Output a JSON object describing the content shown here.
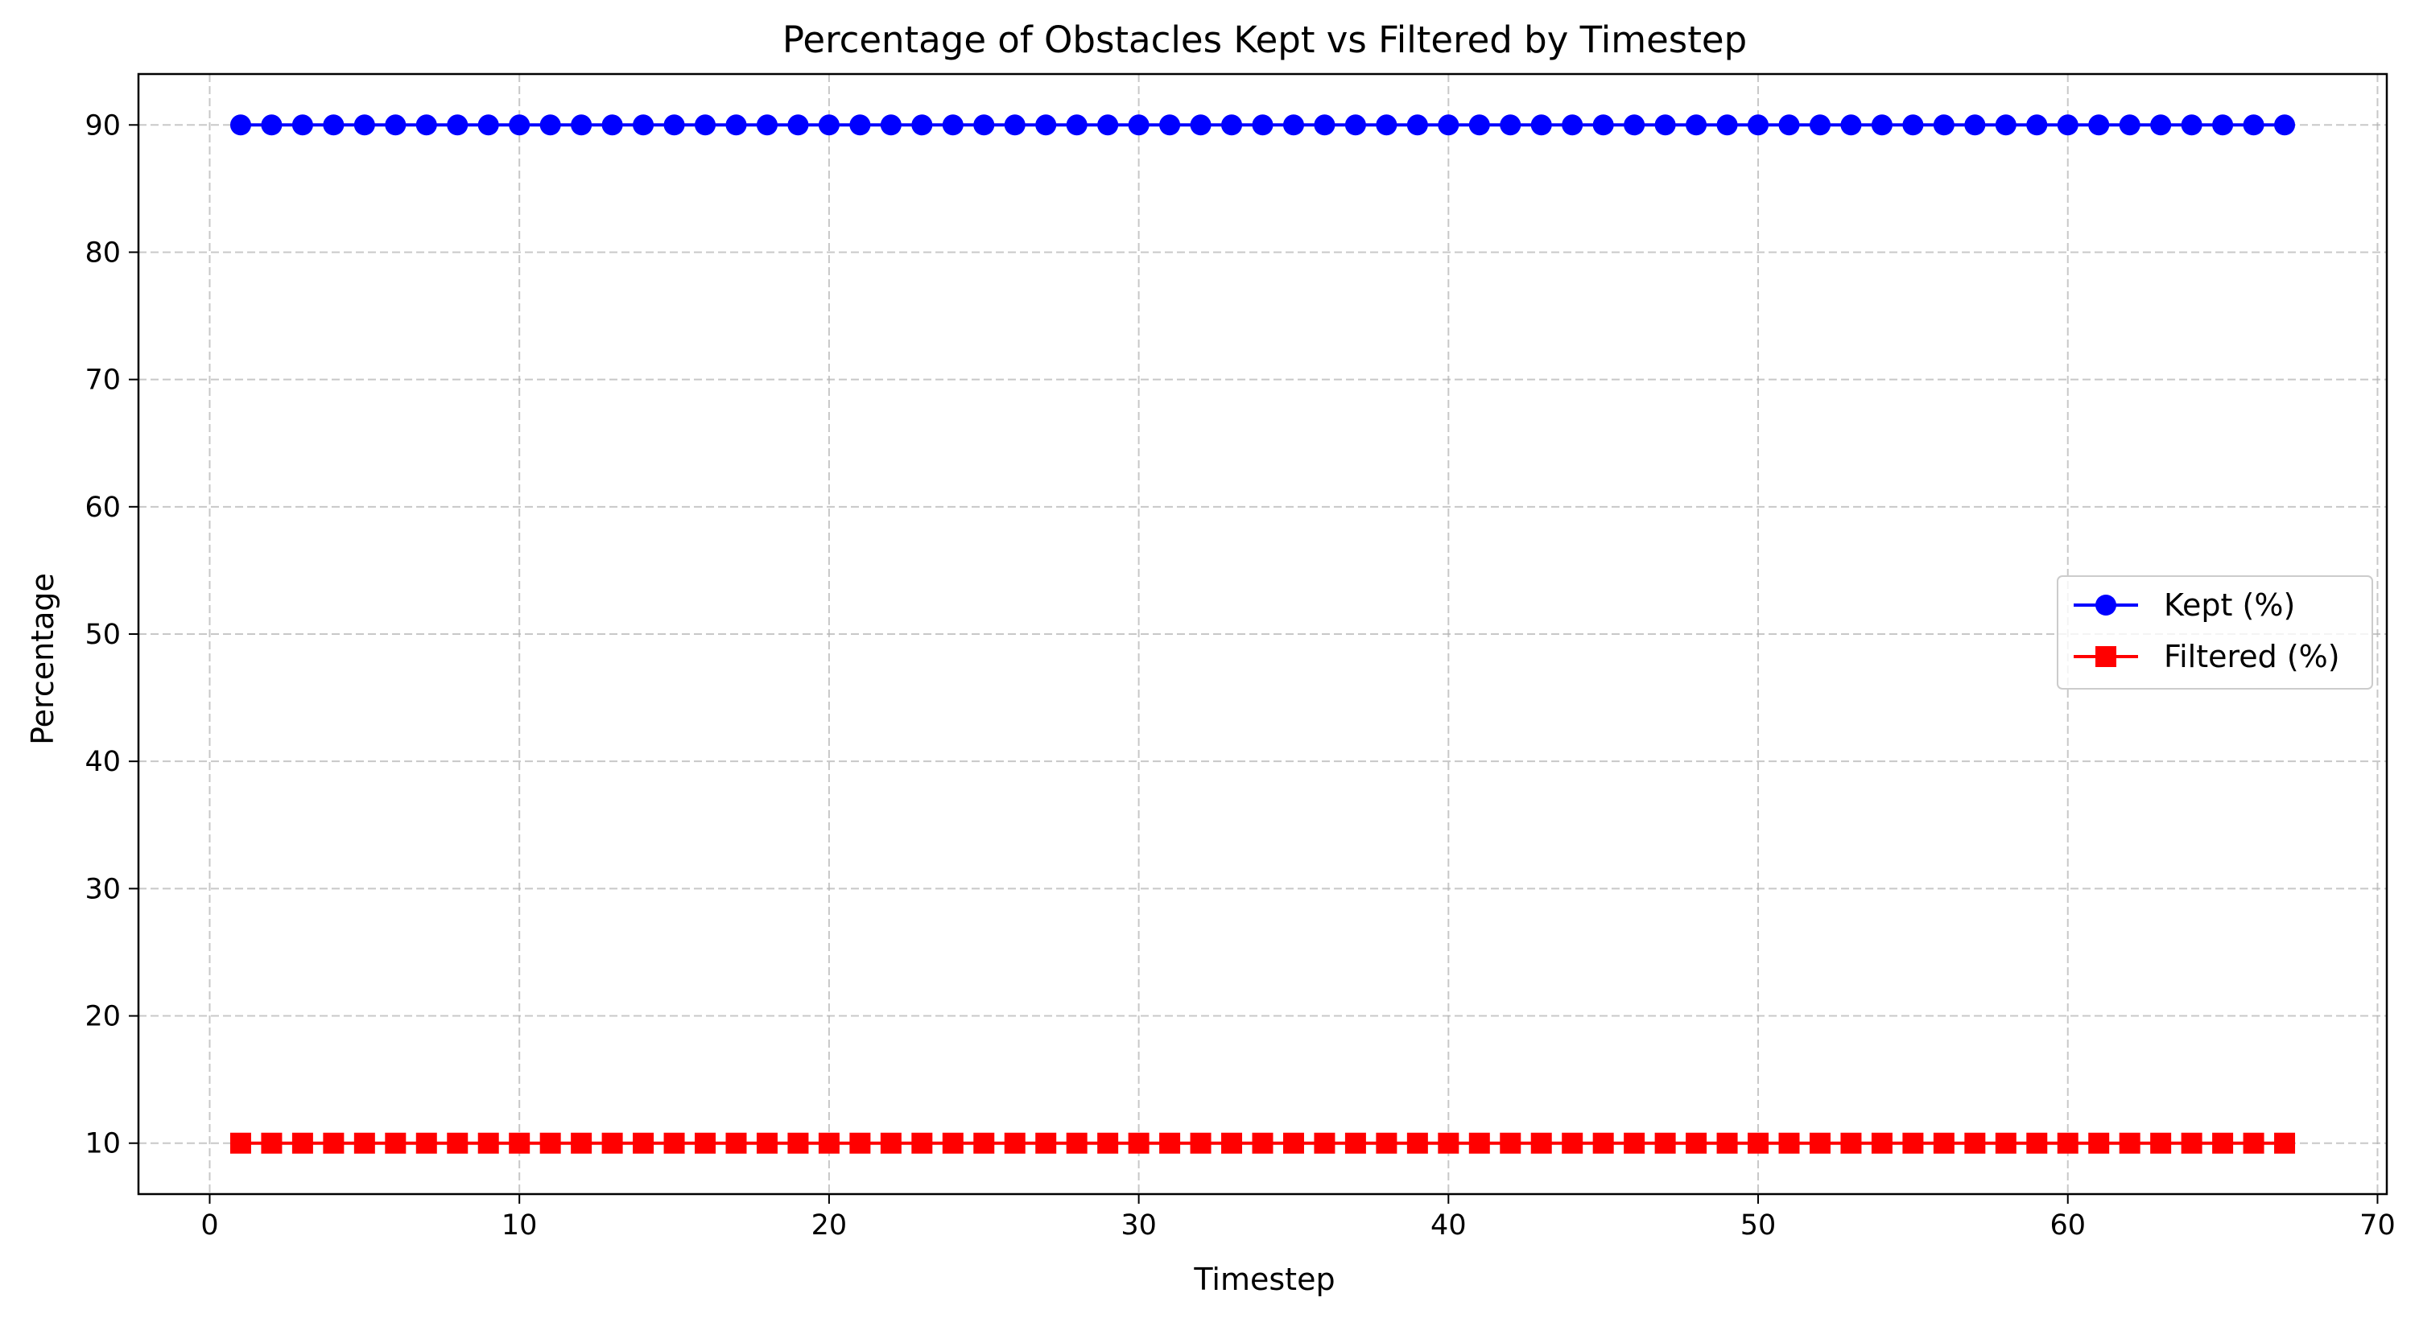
{
  "chart_data": {
    "type": "line",
    "title": "Percentage of Obstacles Kept vs Filtered by Timestep",
    "xlabel": "Timestep",
    "ylabel": "Percentage",
    "xlim": [
      -2.3,
      70.3
    ],
    "ylim": [
      6,
      94
    ],
    "xticks": [
      0,
      10,
      20,
      30,
      40,
      50,
      60,
      70
    ],
    "yticks": [
      10,
      20,
      30,
      40,
      50,
      60,
      70,
      80,
      90
    ],
    "grid": true,
    "legend_position": "center-right",
    "x": [
      1,
      2,
      3,
      4,
      5,
      6,
      7,
      8,
      9,
      10,
      11,
      12,
      13,
      14,
      15,
      16,
      17,
      18,
      19,
      20,
      21,
      22,
      23,
      24,
      25,
      26,
      27,
      28,
      29,
      30,
      31,
      32,
      33,
      34,
      35,
      36,
      37,
      38,
      39,
      40,
      41,
      42,
      43,
      44,
      45,
      46,
      47,
      48,
      49,
      50,
      51,
      52,
      53,
      54,
      55,
      56,
      57,
      58,
      59,
      60,
      61,
      62,
      63,
      64,
      65,
      66,
      67
    ],
    "series": [
      {
        "name": "Kept (%)",
        "color": "#0000ff",
        "marker": "circle",
        "values": [
          90,
          90,
          90,
          90,
          90,
          90,
          90,
          90,
          90,
          90,
          90,
          90,
          90,
          90,
          90,
          90,
          90,
          90,
          90,
          90,
          90,
          90,
          90,
          90,
          90,
          90,
          90,
          90,
          90,
          90,
          90,
          90,
          90,
          90,
          90,
          90,
          90,
          90,
          90,
          90,
          90,
          90,
          90,
          90,
          90,
          90,
          90,
          90,
          90,
          90,
          90,
          90,
          90,
          90,
          90,
          90,
          90,
          90,
          90,
          90,
          90,
          90,
          90,
          90,
          90,
          90,
          90
        ]
      },
      {
        "name": "Filtered (%)",
        "color": "#ff0000",
        "marker": "square",
        "values": [
          10,
          10,
          10,
          10,
          10,
          10,
          10,
          10,
          10,
          10,
          10,
          10,
          10,
          10,
          10,
          10,
          10,
          10,
          10,
          10,
          10,
          10,
          10,
          10,
          10,
          10,
          10,
          10,
          10,
          10,
          10,
          10,
          10,
          10,
          10,
          10,
          10,
          10,
          10,
          10,
          10,
          10,
          10,
          10,
          10,
          10,
          10,
          10,
          10,
          10,
          10,
          10,
          10,
          10,
          10,
          10,
          10,
          10,
          10,
          10,
          10,
          10,
          10,
          10,
          10,
          10,
          10
        ]
      }
    ]
  }
}
